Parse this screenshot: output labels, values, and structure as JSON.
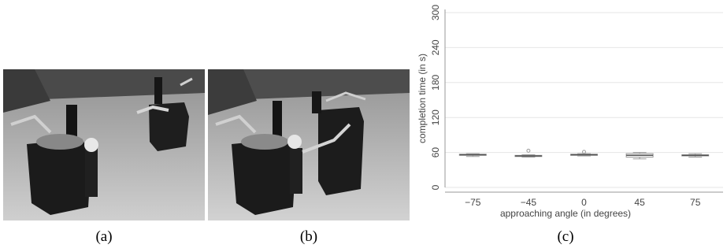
{
  "panels": [
    {
      "caption": "(a)",
      "content": "robot-photo"
    },
    {
      "caption": "(b)",
      "content": "robot-photo"
    },
    {
      "caption": "(c)",
      "content": "chart"
    }
  ],
  "chart_data": {
    "type": "box",
    "title": "",
    "xlabel": "approaching angle (in degrees)",
    "ylabel": "completion time (in s)",
    "ylim": [
      0,
      300
    ],
    "yticks": [
      0,
      60,
      120,
      180,
      240,
      300
    ],
    "grid": "horizontal",
    "categories": [
      "−75",
      "−45",
      "0",
      "45",
      "75"
    ],
    "boxes": [
      {
        "min": 53,
        "q1": 55,
        "median": 56,
        "q3": 57,
        "max": 58,
        "outliers": []
      },
      {
        "min": 52,
        "q1": 53,
        "median": 54,
        "q3": 55,
        "max": 56,
        "outliers": [
          63
        ]
      },
      {
        "min": 54,
        "q1": 55,
        "median": 56,
        "q3": 57,
        "max": 58,
        "outliers": [
          61
        ]
      },
      {
        "min": 49,
        "q1": 52,
        "median": 55,
        "q3": 58,
        "max": 60,
        "outliers": []
      },
      {
        "min": 52,
        "q1": 54,
        "median": 55,
        "q3": 56,
        "max": 58,
        "outliers": []
      }
    ],
    "colors": {
      "box": "#9a9a9a",
      "grid": "#e6e6e6",
      "axis": "#999999",
      "text": "#444444"
    }
  }
}
